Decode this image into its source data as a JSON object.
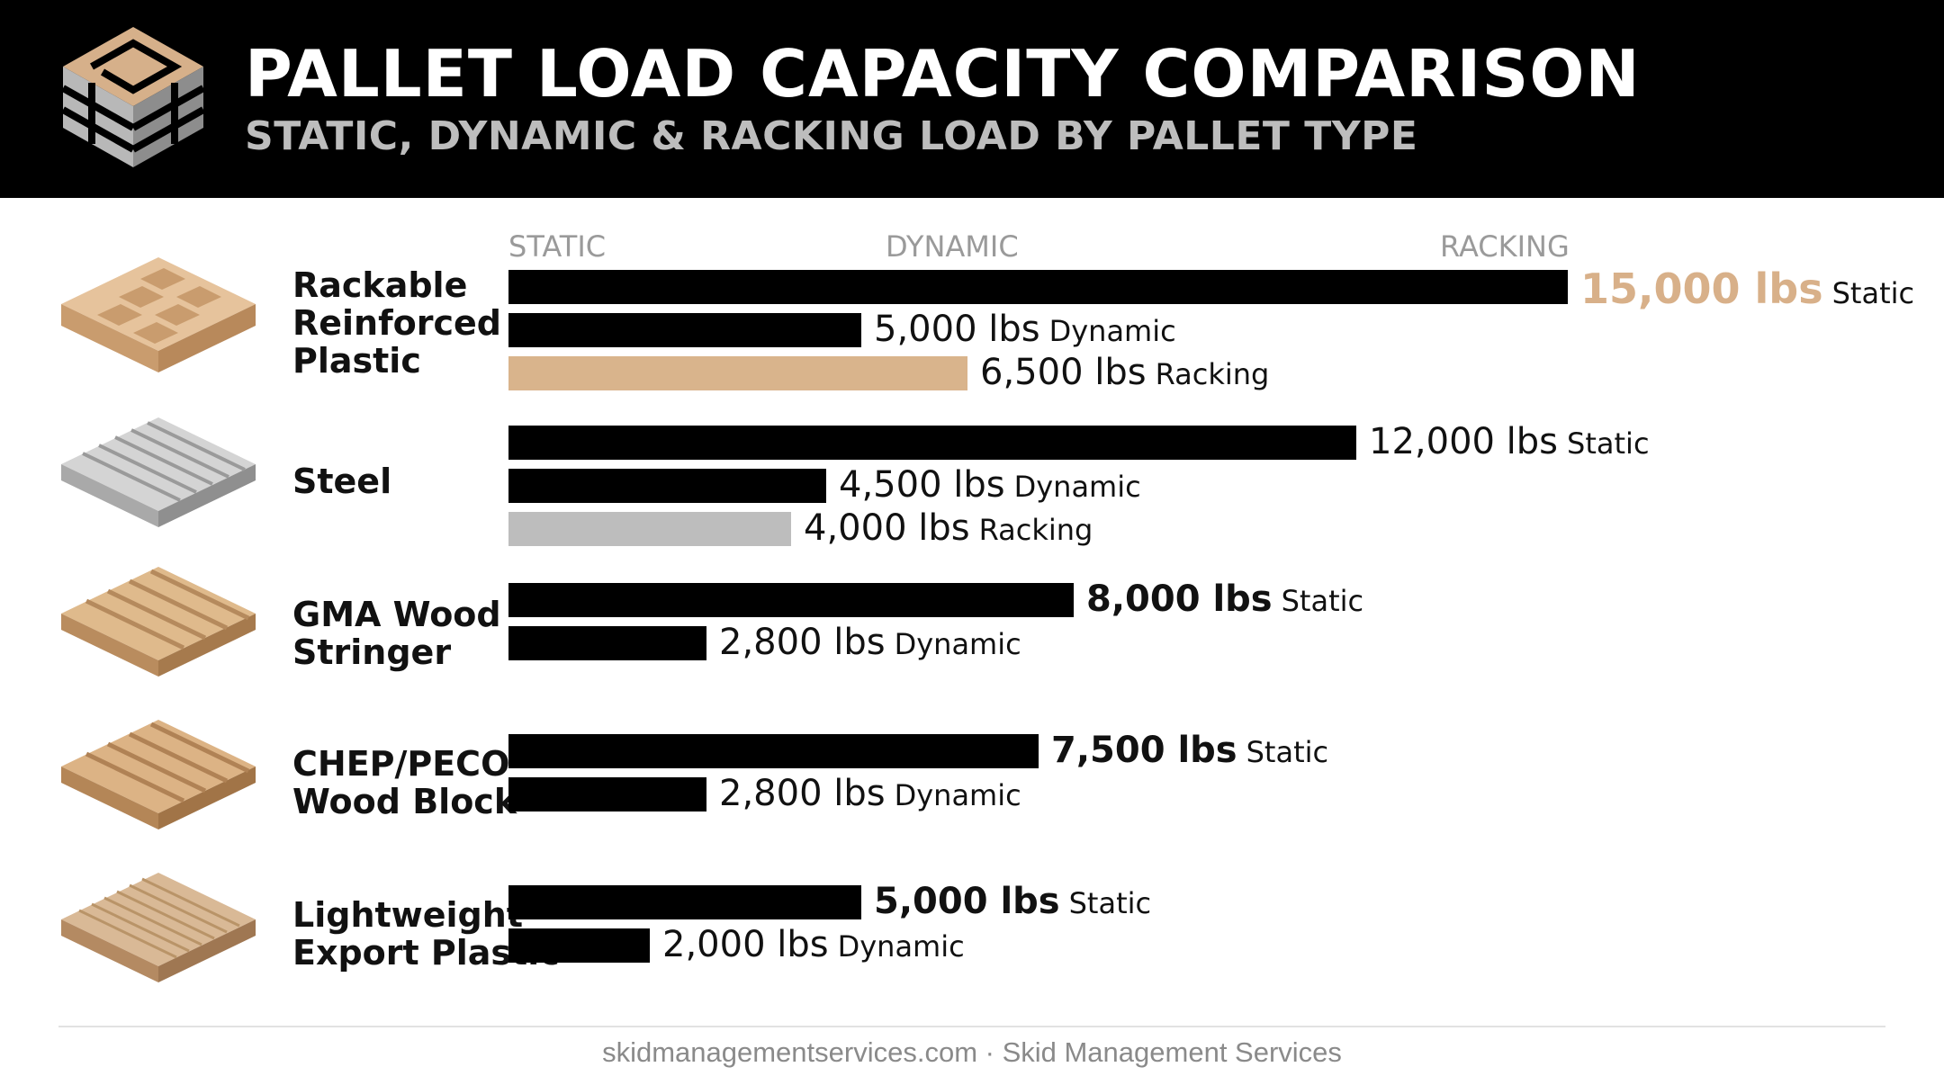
{
  "header": {
    "title": "PALLET LOAD CAPACITY COMPARISON",
    "subtitle": "STATIC, DYNAMIC & RACKING LOAD BY PALLET TYPE"
  },
  "footer": {
    "text": "skidmanagementservices.com · Skid Management Services"
  },
  "colors": {
    "header_bg": "#000000",
    "static": "#000000",
    "dynamic": "#000000",
    "racking_plastic": "#d9b48c",
    "racking_steel": "#bdbdbd",
    "highlight_text": "#d8b089"
  },
  "icons": {
    "logo": "pallet-logo-icon",
    "pallets": [
      "rackable-plastic-pallet-icon",
      "steel-pallet-icon",
      "gma-wood-pallet-icon",
      "chep-wood-block-pallet-icon",
      "export-plastic-pallet-icon"
    ]
  },
  "chart_data": {
    "type": "bar",
    "orientation": "horizontal",
    "column_headers": [
      "STATIC",
      "DYNAMIC",
      "RACKING"
    ],
    "unit": "lbs",
    "xlim": [
      0,
      15000
    ],
    "grid": false,
    "categories": [
      {
        "name": "Rackable\nReinforced\nPlastic",
        "bars": [
          {
            "type": "Static",
            "value": 15000,
            "label": "15,000 lbs",
            "highlight": true
          },
          {
            "type": "Dynamic",
            "value": 5000,
            "label": "5,000 lbs"
          },
          {
            "type": "Racking",
            "value": 6500,
            "label": "6,500 lbs",
            "color": "#d9b48c"
          }
        ]
      },
      {
        "name": "Steel",
        "bars": [
          {
            "type": "Static",
            "value": 12000,
            "label": "12,000 lbs"
          },
          {
            "type": "Dynamic",
            "value": 4500,
            "label": "4,500 lbs"
          },
          {
            "type": "Racking",
            "value": 4000,
            "label": "4,000 lbs",
            "color": "#bdbdbd"
          }
        ]
      },
      {
        "name": "GMA Wood\nStringer",
        "bars": [
          {
            "type": "Static",
            "value": 8000,
            "label": "8,000 lbs",
            "bold": true
          },
          {
            "type": "Dynamic",
            "value": 2800,
            "label": "2,800 lbs"
          }
        ]
      },
      {
        "name": "CHEP/PECO\nWood Block",
        "bars": [
          {
            "type": "Static",
            "value": 7500,
            "label": "7,500 lbs",
            "bold": true
          },
          {
            "type": "Dynamic",
            "value": 2800,
            "label": "2,800 lbs"
          }
        ]
      },
      {
        "name": "Lightweight\nExport Plastic",
        "bars": [
          {
            "type": "Static",
            "value": 5000,
            "label": "5,000 lbs",
            "bold": true
          },
          {
            "type": "Dynamic",
            "value": 2000,
            "label": "2,000 lbs"
          }
        ]
      }
    ]
  }
}
